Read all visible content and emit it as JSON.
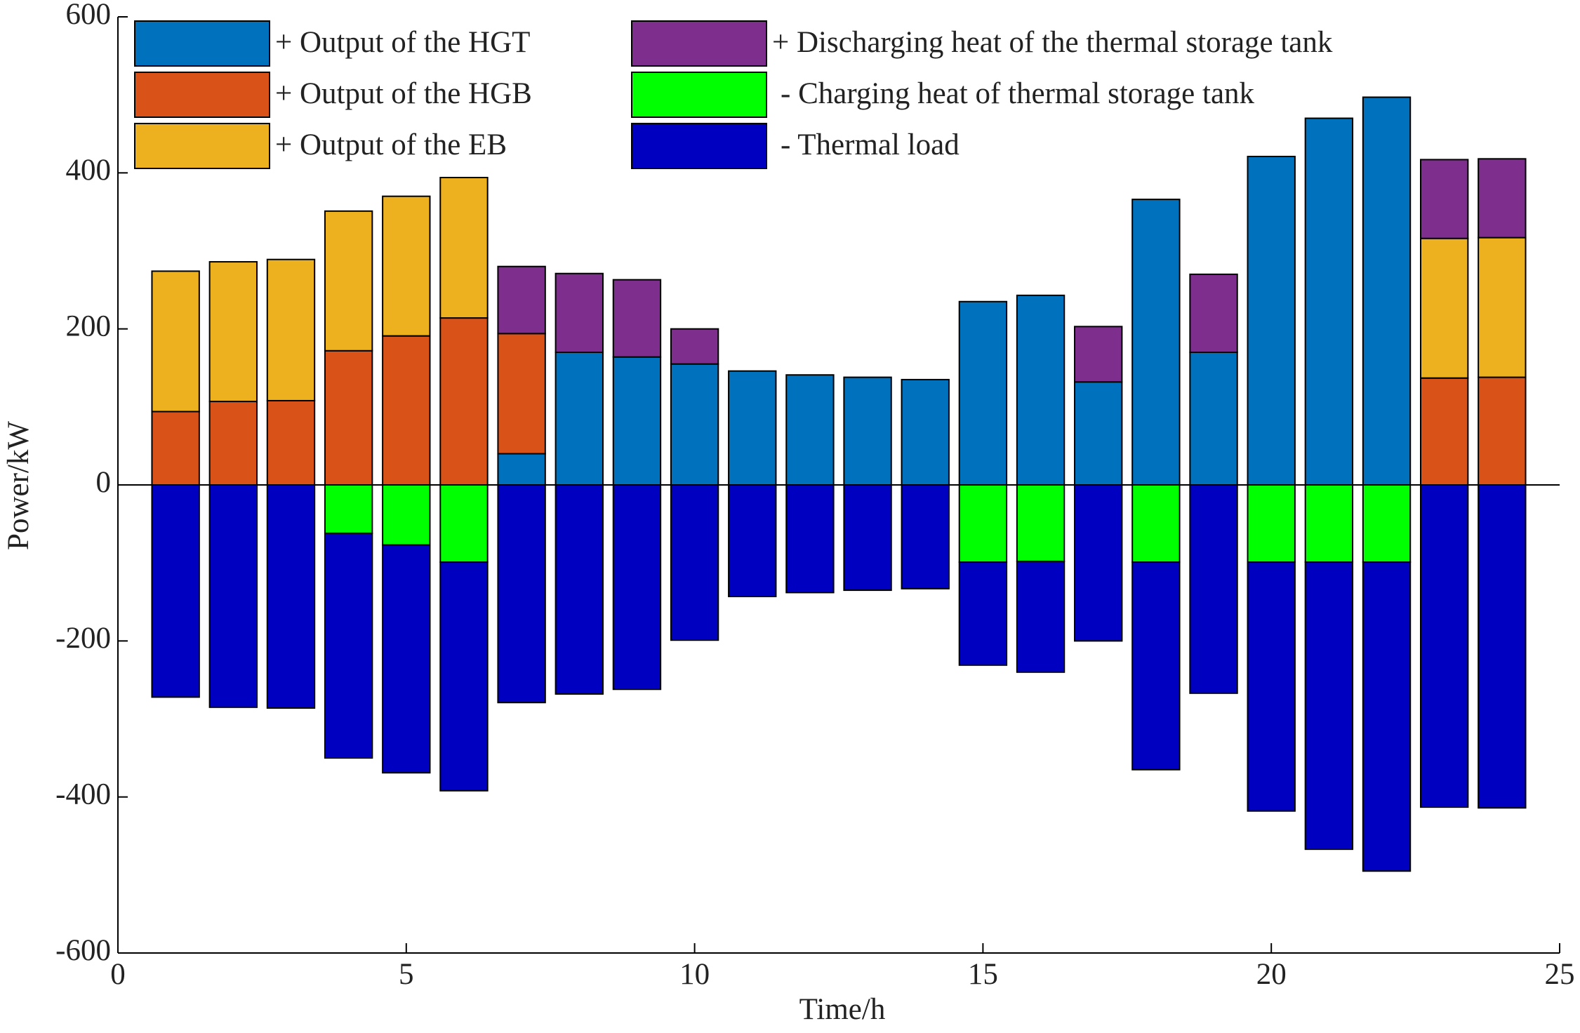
{
  "chart_data": {
    "type": "bar",
    "stacked": true,
    "xlabel": "Time/h",
    "ylabel": "Power/kW",
    "x": [
      1,
      2,
      3,
      4,
      5,
      6,
      7,
      8,
      9,
      10,
      11,
      12,
      13,
      14,
      15,
      16,
      17,
      18,
      19,
      20,
      21,
      22,
      23,
      24
    ],
    "xlim": [
      0,
      25
    ],
    "xticks": [
      0,
      5,
      10,
      15,
      20,
      25
    ],
    "ylim": [
      -600,
      600
    ],
    "yticks": [
      -600,
      -400,
      -200,
      0,
      200,
      400,
      600
    ],
    "series": [
      {
        "name": "+ Output of the HGT",
        "color": "#0072bd",
        "values": [
          null,
          null,
          null,
          null,
          null,
          null,
          40,
          170,
          164,
          155,
          146,
          141,
          138,
          135,
          235,
          243,
          132,
          366,
          170,
          421,
          470,
          497,
          null,
          null
        ]
      },
      {
        "name": "+ Output of the HGB",
        "color": "#d95319",
        "values": [
          94,
          107,
          108,
          172,
          191,
          214,
          154,
          null,
          null,
          null,
          null,
          null,
          null,
          null,
          null,
          null,
          null,
          null,
          null,
          null,
          null,
          null,
          137,
          138
        ]
      },
      {
        "name": "+ Output of the EB",
        "color": "#edb120",
        "values": [
          180,
          179,
          181,
          179,
          179,
          180,
          null,
          null,
          null,
          null,
          null,
          null,
          null,
          null,
          null,
          null,
          null,
          null,
          null,
          null,
          null,
          null,
          179,
          179
        ]
      },
      {
        "name": "+ Discharging heat of the thermal storage tank",
        "color": "#7e2f8e",
        "values": [
          null,
          null,
          null,
          null,
          null,
          null,
          86,
          101,
          99,
          45,
          null,
          null,
          null,
          null,
          null,
          null,
          71,
          null,
          100,
          null,
          null,
          null,
          101,
          101
        ]
      },
      {
        "name": "- Charging heat of thermal storage tank",
        "color": "#00ff00",
        "values": [
          null,
          null,
          null,
          -62,
          -77,
          -99,
          null,
          null,
          null,
          null,
          null,
          null,
          null,
          null,
          -99,
          -98,
          null,
          -99,
          null,
          -99,
          -99,
          -99,
          null,
          null
        ]
      },
      {
        "name": "- Thermal load",
        "color": "#0000c0",
        "values": [
          -272,
          -285,
          -286,
          -288,
          -292,
          -293,
          -279,
          -268,
          -262,
          -199,
          -143,
          -138,
          -135,
          -133,
          -132,
          -142,
          -200,
          -266,
          -267,
          -319,
          -368,
          -396,
          -413,
          -414
        ]
      }
    ]
  }
}
